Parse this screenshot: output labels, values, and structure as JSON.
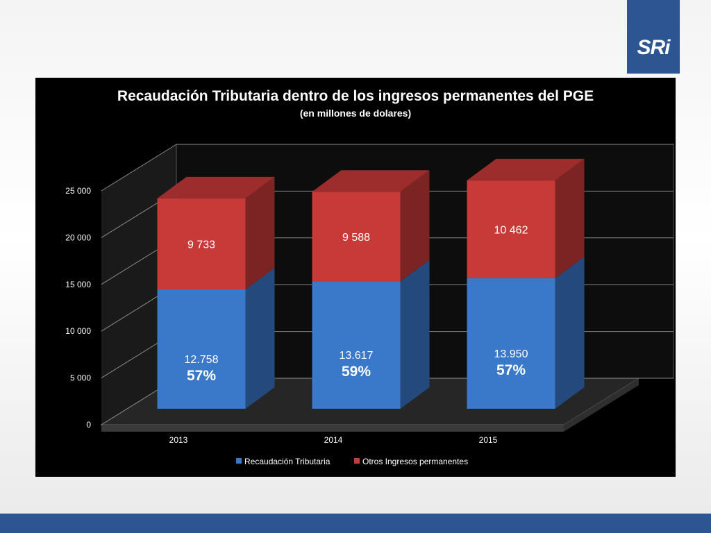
{
  "brand": {
    "logo_text": "SRi",
    "primary_color": "#2c5592"
  },
  "chart_data": {
    "type": "bar",
    "stacked": true,
    "style": "3d",
    "title": "Recaudación Tributaria dentro de los ingresos permanentes del PGE",
    "subtitle": "(en millones de dolares)",
    "categories": [
      "2013",
      "2014",
      "2015"
    ],
    "ylim": [
      0,
      25000
    ],
    "yticks": [
      0,
      5000,
      10000,
      15000,
      20000,
      25000
    ],
    "ytick_labels": [
      "0",
      "5 000",
      "10 000",
      "15 000",
      "20 000",
      "25 000"
    ],
    "grid": true,
    "legend_position": "bottom",
    "series": [
      {
        "name": "Recaudación Tributaria",
        "color": "#3a78c9",
        "values": [
          12758,
          13617,
          13950
        ],
        "labels": [
          "12.758",
          "13.617",
          "13.950"
        ],
        "share_labels": [
          "57%",
          "59%",
          "57%"
        ]
      },
      {
        "name": "Otros Ingresos permanentes",
        "color": "#c83a38",
        "values": [
          9733,
          9588,
          10462
        ],
        "labels": [
          "9 733",
          "9 588",
          "10 462"
        ]
      }
    ]
  }
}
